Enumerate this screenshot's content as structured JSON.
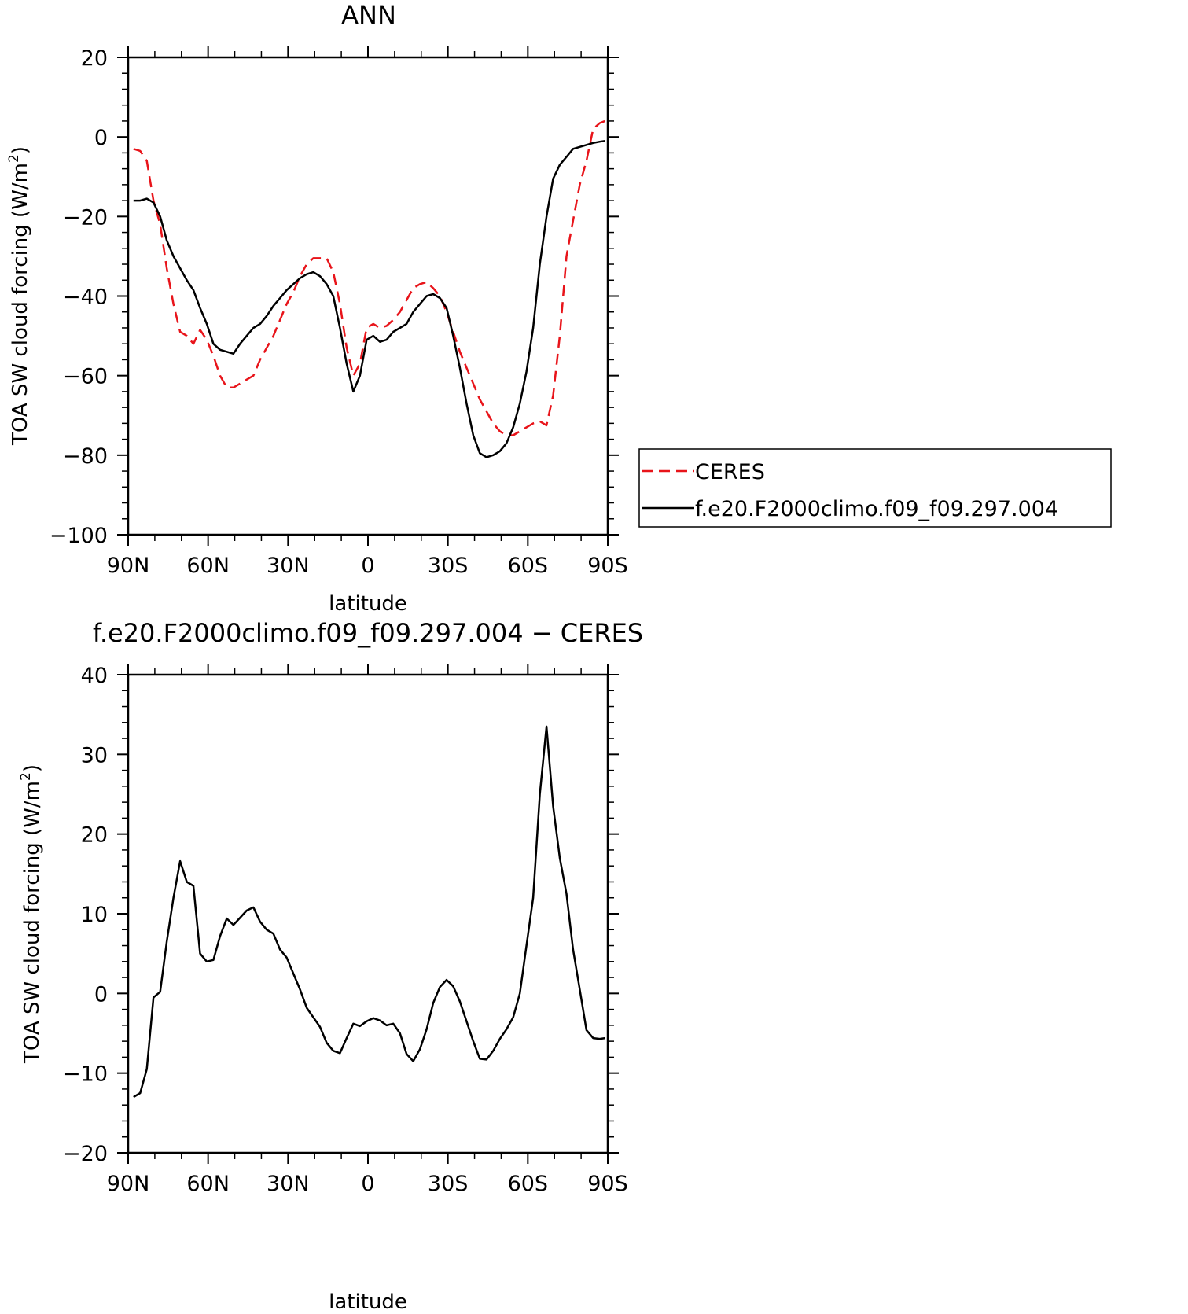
{
  "chart_data": [
    {
      "type": "line",
      "title": "ANN",
      "xlabel": "latitude",
      "ylabel": "TOA SW cloud forcing (W/m",
      "ylabel_sup": "2",
      "ylabel_close": ")",
      "xlim": [
        90,
        -90
      ],
      "ylim": [
        -100,
        20
      ],
      "x_ticks": [
        {
          "value": 90,
          "label": "90N"
        },
        {
          "value": 60,
          "label": "60N"
        },
        {
          "value": 30,
          "label": "30N"
        },
        {
          "value": 0,
          "label": "0"
        },
        {
          "value": -30,
          "label": "30S"
        },
        {
          "value": -60,
          "label": "60S"
        },
        {
          "value": -90,
          "label": "90S"
        }
      ],
      "y_ticks": [
        {
          "value": 20,
          "label": "20"
        },
        {
          "value": 0,
          "label": "0"
        },
        {
          "value": -20,
          "label": "−20"
        },
        {
          "value": -40,
          "label": "−40"
        },
        {
          "value": -60,
          "label": "−60"
        },
        {
          "value": -80,
          "label": "−80"
        },
        {
          "value": -100,
          "label": "−100"
        }
      ],
      "legend": {
        "placement": "right"
      },
      "series": [
        {
          "name": "CERES",
          "color": "#e8141a",
          "dash": true,
          "x": [
            88,
            85.5,
            83,
            80.5,
            78,
            75.5,
            73,
            70.5,
            68,
            65.5,
            63,
            60.5,
            58,
            55.5,
            53,
            50.5,
            48,
            45.5,
            43,
            40.5,
            38,
            35.5,
            33,
            30.5,
            28,
            25.5,
            23,
            20.5,
            18,
            15.5,
            13,
            10.5,
            8,
            5.5,
            3,
            0.5,
            -2,
            -4.5,
            -7,
            -9.5,
            -12,
            -14.5,
            -17,
            -19.5,
            -22,
            -24.5,
            -27,
            -29.5,
            -32,
            -34.5,
            -37,
            -39.5,
            -42,
            -44.5,
            -47,
            -49.5,
            -52,
            -54.5,
            -57,
            -59.5,
            -62,
            -64.5,
            -67,
            -69.5,
            -72,
            -74.5,
            -77,
            -79.5,
            -82,
            -84.5,
            -87,
            -89
          ],
          "y": [
            -3,
            -3.5,
            -6,
            -16,
            -22,
            -33,
            -42,
            -49,
            -50,
            -52,
            -48.5,
            -51,
            -55,
            -60,
            -63,
            -63,
            -62,
            -61,
            -60,
            -56,
            -53,
            -50,
            -46,
            -42,
            -39,
            -35,
            -32,
            -30.5,
            -30.5,
            -30.5,
            -34,
            -42,
            -53,
            -60,
            -57,
            -48,
            -47,
            -48,
            -47.5,
            -46,
            -44,
            -41,
            -38,
            -37,
            -36.5,
            -38,
            -40,
            -44,
            -49,
            -54,
            -58,
            -62,
            -66,
            -69,
            -72,
            -74,
            -75,
            -75,
            -74,
            -73,
            -72,
            -71.5,
            -72.5,
            -65,
            -50,
            -30,
            -21,
            -12,
            -6,
            2,
            3.5,
            4
          ]
        },
        {
          "name": "f.e20.F2000climo.f09_f09.297.004",
          "color": "#000000",
          "dash": false,
          "x": [
            88,
            85.5,
            83,
            80.5,
            78,
            75.5,
            73,
            70.5,
            68,
            65.5,
            63,
            60.5,
            58,
            55.5,
            53,
            50.5,
            48,
            45.5,
            43,
            40.5,
            38,
            35.5,
            33,
            30.5,
            28,
            25.5,
            23,
            20.5,
            18,
            15.5,
            13,
            10.5,
            8,
            5.5,
            3,
            0.5,
            -2,
            -4.5,
            -7,
            -9.5,
            -12,
            -14.5,
            -17,
            -19.5,
            -22,
            -24.5,
            -27,
            -29.5,
            -32,
            -34.5,
            -37,
            -39.5,
            -42,
            -44.5,
            -47,
            -49.5,
            -52,
            -54.5,
            -57,
            -59.5,
            -62,
            -64.5,
            -67,
            -69.5,
            -72,
            -74.5,
            -77,
            -79.5,
            -82,
            -84.5,
            -87,
            -89
          ],
          "y": [
            -16,
            -16,
            -15.5,
            -16.5,
            -20,
            -26,
            -30,
            -33,
            -36,
            -38.5,
            -43,
            -47,
            -52,
            -53.5,
            -54,
            -54.5,
            -52,
            -50,
            -48,
            -47,
            -45,
            -42.5,
            -40.5,
            -38.5,
            -37,
            -35.5,
            -34.5,
            -34,
            -35,
            -37,
            -40,
            -48,
            -57,
            -64,
            -60,
            -51,
            -50,
            -51.5,
            -51,
            -49,
            -48,
            -47,
            -44,
            -42,
            -40,
            -39.5,
            -40.5,
            -43,
            -50,
            -58,
            -67,
            -75,
            -79.5,
            -80.5,
            -80,
            -79,
            -77,
            -73,
            -67,
            -59,
            -48,
            -32,
            -20,
            -10.5,
            -7,
            -5,
            -3,
            -2.5,
            -2,
            -1.5,
            -1.2,
            -1
          ]
        }
      ]
    },
    {
      "type": "line",
      "title": "f.e20.F2000climo.f09_f09.297.004 − CERES",
      "xlabel": "latitude",
      "ylabel": "TOA SW cloud forcing (W/m",
      "ylabel_sup": "2",
      "ylabel_close": ")",
      "xlim": [
        90,
        -90
      ],
      "ylim": [
        -20,
        40
      ],
      "x_ticks": [
        {
          "value": 90,
          "label": "90N"
        },
        {
          "value": 60,
          "label": "60N"
        },
        {
          "value": 30,
          "label": "30N"
        },
        {
          "value": 0,
          "label": "0"
        },
        {
          "value": -30,
          "label": "30S"
        },
        {
          "value": -60,
          "label": "60S"
        },
        {
          "value": -90,
          "label": "90S"
        }
      ],
      "y_ticks": [
        {
          "value": 40,
          "label": "40"
        },
        {
          "value": 30,
          "label": "30"
        },
        {
          "value": 20,
          "label": "20"
        },
        {
          "value": 10,
          "label": "10"
        },
        {
          "value": 0,
          "label": "0"
        },
        {
          "value": -10,
          "label": "−10"
        },
        {
          "value": -20,
          "label": "−20"
        }
      ],
      "series": [
        {
          "color": "#000000",
          "dash": false,
          "x": [
            88,
            85.5,
            83,
            80.5,
            78,
            75.5,
            73,
            70.5,
            68,
            65.5,
            63,
            60.5,
            58,
            55.5,
            53,
            50.5,
            48,
            45.5,
            43,
            40.5,
            38,
            35.5,
            33,
            30.5,
            28,
            25.5,
            23,
            20.5,
            18,
            15.5,
            13,
            10.5,
            8,
            5.5,
            3,
            0.5,
            -2,
            -4.5,
            -7,
            -9.5,
            -12,
            -14.5,
            -17,
            -19.5,
            -22,
            -24.5,
            -27,
            -29.5,
            -32,
            -34.5,
            -37,
            -39.5,
            -42,
            -44.5,
            -47,
            -49.5,
            -52,
            -54.5,
            -57,
            -59.5,
            -62,
            -64.5,
            -67,
            -69.5,
            -72,
            -74.5,
            -77,
            -79.5,
            -82,
            -84.5,
            -87,
            -89
          ],
          "y": [
            -13,
            -12.5,
            -9.5,
            -0.5,
            0.2,
            6.5,
            12,
            16.6,
            14,
            13.5,
            5,
            4,
            4.2,
            7.2,
            9.4,
            8.6,
            9.5,
            10.4,
            10.8,
            9,
            8,
            7.5,
            5.5,
            4.5,
            2.5,
            0.5,
            -1.8,
            -3,
            -4.2,
            -6.2,
            -7.2,
            -7.5,
            -5.6,
            -3.8,
            -4.1,
            -3.5,
            -3.1,
            -3.4,
            -4,
            -3.8,
            -5,
            -7.6,
            -8.5,
            -7,
            -4.5,
            -1.2,
            0.8,
            1.7,
            0.9,
            -1,
            -3.5,
            -6,
            -8.2,
            -8.3,
            -7.2,
            -5.7,
            -4.5,
            -3,
            0,
            6,
            12,
            25,
            33.5,
            23.5,
            17,
            12.5,
            5.5,
            0.5,
            -4.6,
            -5.6,
            -5.7,
            -5.6
          ]
        }
      ]
    }
  ]
}
